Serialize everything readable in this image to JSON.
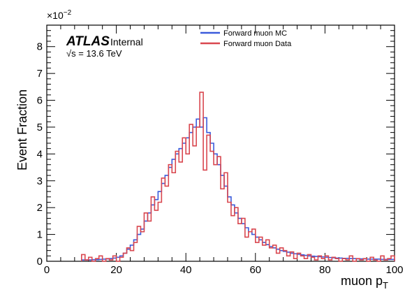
{
  "chart_data": {
    "type": "line",
    "xlabel": "muon p",
    "xlabel_sub": "T",
    "ylabel": "Event Fraction",
    "y_scale_prefix": "×10",
    "y_scale_exponent": "−2",
    "xlim": [
      0,
      100
    ],
    "ylim": [
      0,
      8.8
    ],
    "x_ticks": [
      0,
      20,
      40,
      60,
      80,
      100
    ],
    "y_ticks": [
      0,
      1,
      2,
      3,
      4,
      5,
      6,
      7,
      8
    ],
    "bin_width": 1,
    "legend_position": "top-center",
    "series": [
      {
        "name": "Forward muon MC",
        "color": "#3b5bdb",
        "x": [
          10,
          11,
          12,
          13,
          14,
          15,
          16,
          17,
          18,
          19,
          20,
          21,
          22,
          23,
          24,
          25,
          26,
          27,
          28,
          29,
          30,
          31,
          32,
          33,
          34,
          35,
          36,
          37,
          38,
          39,
          40,
          41,
          42,
          43,
          44,
          45,
          46,
          47,
          48,
          49,
          50,
          51,
          52,
          53,
          54,
          55,
          56,
          57,
          58,
          59,
          60,
          61,
          62,
          63,
          64,
          65,
          66,
          67,
          68,
          69,
          70,
          71,
          72,
          73,
          74,
          75,
          76,
          77,
          78,
          79,
          80,
          81,
          82,
          83,
          84,
          85,
          86,
          87,
          88,
          89,
          90,
          91,
          92,
          93,
          94,
          95,
          96,
          97,
          98,
          99
        ],
        "values": [
          0.05,
          0.05,
          0.05,
          0.06,
          0.06,
          0.07,
          0.08,
          0.09,
          0.1,
          0.12,
          0.15,
          0.2,
          0.3,
          0.45,
          0.6,
          0.8,
          1.0,
          1.2,
          1.5,
          1.8,
          2.1,
          2.3,
          2.6,
          2.9,
          3.2,
          3.5,
          3.8,
          4.0,
          4.2,
          4.4,
          4.6,
          4.8,
          5.0,
          5.3,
          5.0,
          5.35,
          4.8,
          4.4,
          4.0,
          3.6,
          3.2,
          2.8,
          2.4,
          2.1,
          1.8,
          1.6,
          1.4,
          1.25,
          1.1,
          1.0,
          0.9,
          0.8,
          0.7,
          0.62,
          0.55,
          0.5,
          0.45,
          0.4,
          0.37,
          0.34,
          0.3,
          0.28,
          0.26,
          0.24,
          0.22,
          0.2,
          0.19,
          0.18,
          0.17,
          0.16,
          0.15,
          0.14,
          0.13,
          0.12,
          0.12,
          0.11,
          0.11,
          0.1,
          0.1,
          0.09,
          0.09,
          0.09,
          0.08,
          0.08,
          0.08,
          0.08,
          0.07,
          0.07,
          0.07,
          0.07
        ]
      },
      {
        "name": "Forward muon Data",
        "color": "#d9474f",
        "x": [
          10,
          11,
          12,
          13,
          14,
          15,
          16,
          17,
          18,
          19,
          20,
          21,
          22,
          23,
          24,
          25,
          26,
          27,
          28,
          29,
          30,
          31,
          32,
          33,
          34,
          35,
          36,
          37,
          38,
          39,
          40,
          41,
          42,
          43,
          44,
          45,
          46,
          47,
          48,
          49,
          50,
          51,
          52,
          53,
          54,
          55,
          56,
          57,
          58,
          59,
          60,
          61,
          62,
          63,
          64,
          65,
          66,
          67,
          68,
          69,
          70,
          71,
          72,
          73,
          74,
          75,
          76,
          77,
          78,
          79,
          80,
          81,
          82,
          83,
          84,
          85,
          86,
          87,
          88,
          89,
          90,
          91,
          92,
          93,
          94,
          95,
          96,
          97,
          98,
          99
        ],
        "values": [
          0.25,
          0.05,
          0.15,
          0.0,
          0.1,
          0.2,
          0.0,
          0.1,
          0.05,
          0.2,
          0.0,
          0.15,
          0.3,
          0.5,
          0.4,
          0.7,
          1.3,
          1.1,
          1.8,
          1.5,
          2.4,
          1.9,
          2.2,
          3.1,
          2.8,
          3.6,
          3.3,
          4.1,
          3.7,
          4.6,
          4.0,
          5.1,
          4.3,
          5.0,
          6.3,
          3.4,
          4.7,
          4.1,
          3.6,
          3.9,
          2.7,
          3.3,
          2.2,
          1.7,
          2.0,
          1.4,
          1.6,
          0.9,
          1.1,
          1.2,
          0.7,
          0.9,
          0.6,
          0.8,
          0.5,
          0.6,
          0.3,
          0.5,
          0.4,
          0.2,
          0.35,
          0.1,
          0.3,
          0.2,
          0.1,
          0.25,
          0.15,
          0.05,
          0.2,
          0.1,
          0.2,
          0.05,
          0.15,
          0.1,
          0.0,
          0.1,
          0.05,
          0.2,
          0.0,
          0.1,
          0.05,
          0.1,
          0.0,
          0.15,
          0.05,
          0.0,
          0.2,
          0.05,
          0.1,
          0.2
        ]
      }
    ]
  },
  "labels": {
    "experiment": "ATLAS",
    "status": "Internal",
    "energy_sqrt": "√s",
    "energy_value": " = 13.6 TeV"
  }
}
